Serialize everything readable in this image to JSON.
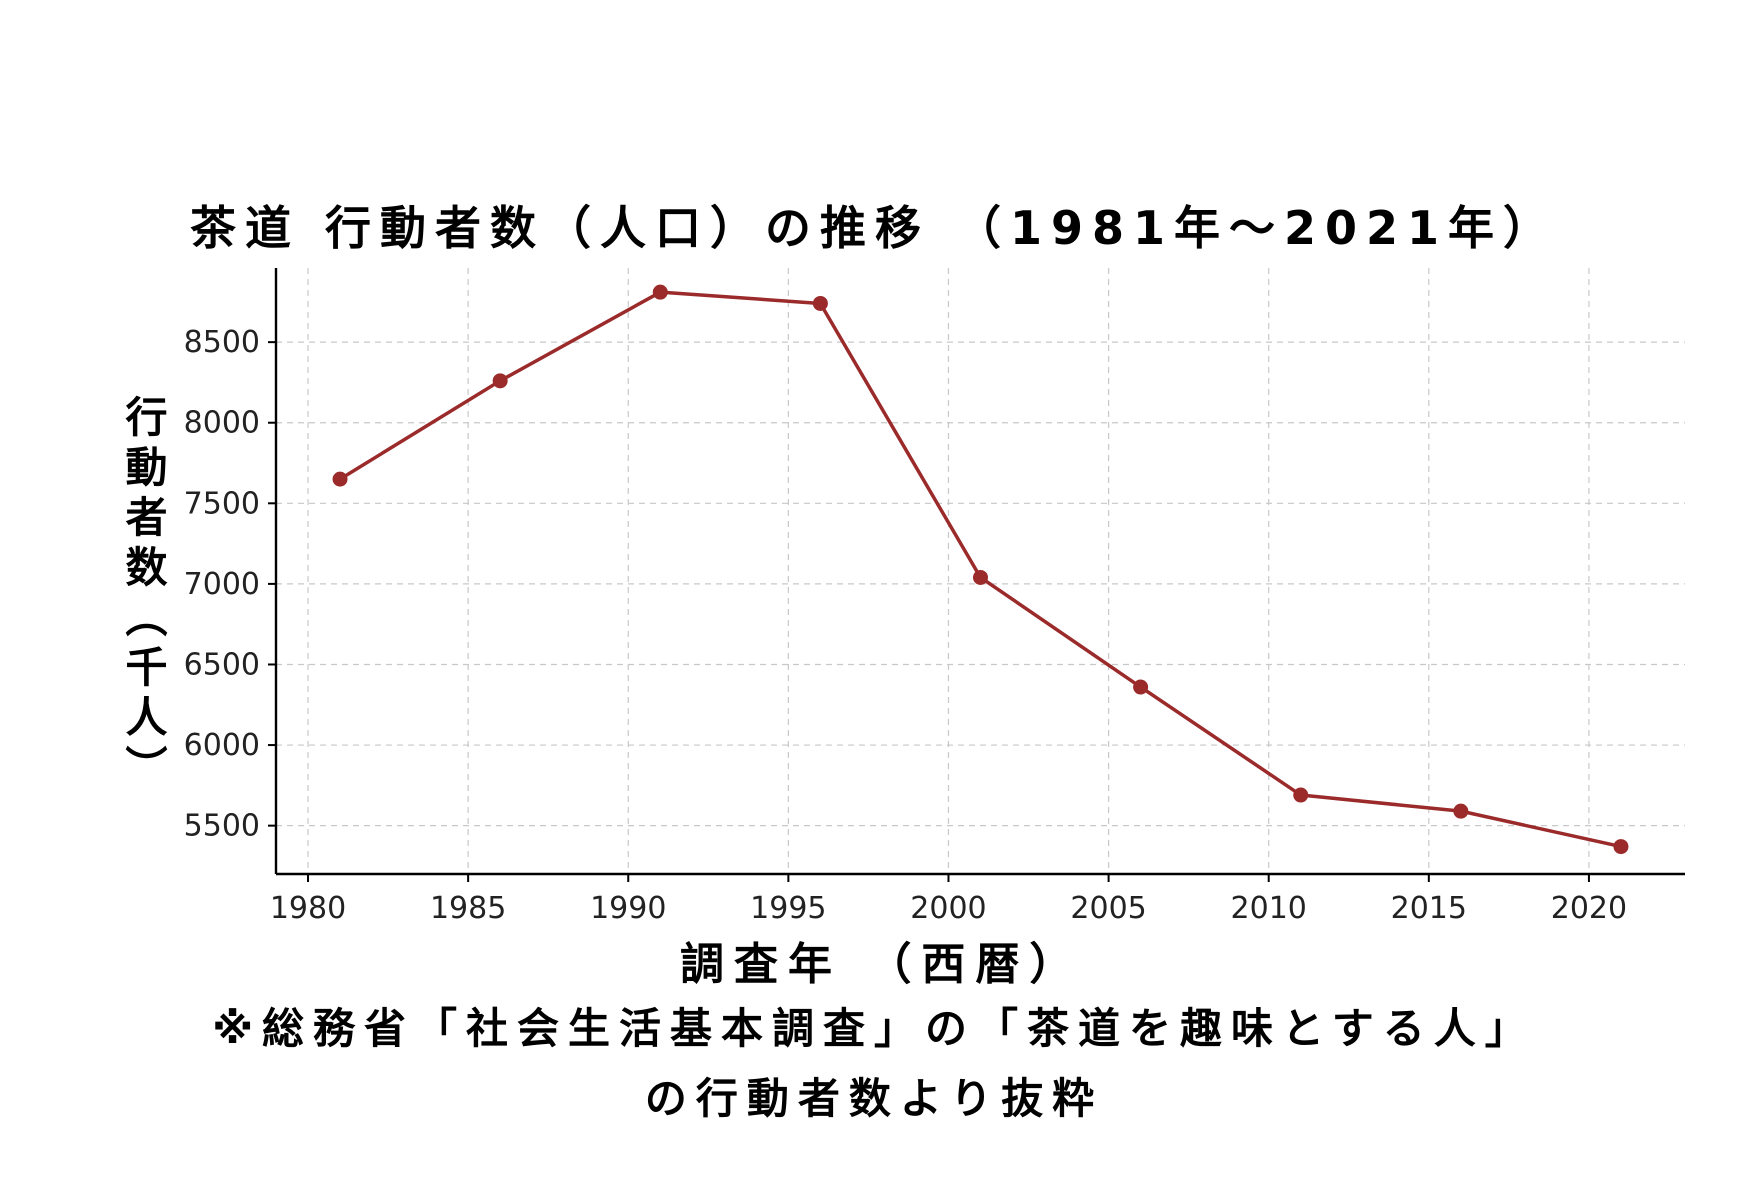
{
  "chart_data": {
    "type": "line",
    "title": "茶道 行動者数（人口）の推移 （1981年～2021年）",
    "xlabel": "調査年 （西暦）",
    "ylabel": "行動者数（千人）",
    "x": [
      1981,
      1986,
      1991,
      1996,
      2001,
      2006,
      2011,
      2016,
      2021
    ],
    "series": [
      {
        "values": [
          7650,
          8260,
          8810,
          8740,
          7040,
          6360,
          5690,
          5590,
          5370
        ]
      }
    ],
    "xlim": [
      1979,
      2023
    ],
    "ylim": [
      5200,
      8960
    ],
    "xticks": [
      "1980",
      "1985",
      "1990",
      "1995",
      "2000",
      "2005",
      "2010",
      "2015",
      "2020"
    ],
    "yticks": [
      "5500",
      "6000",
      "6500",
      "7000",
      "7500",
      "8000",
      "8500"
    ],
    "grid": true,
    "line_color": "#9b2a2a"
  },
  "note_line1": "※総務省「社会生活基本調査」の「茶道を趣味とする人」",
  "note_line2": "の行動者数より抜粋"
}
